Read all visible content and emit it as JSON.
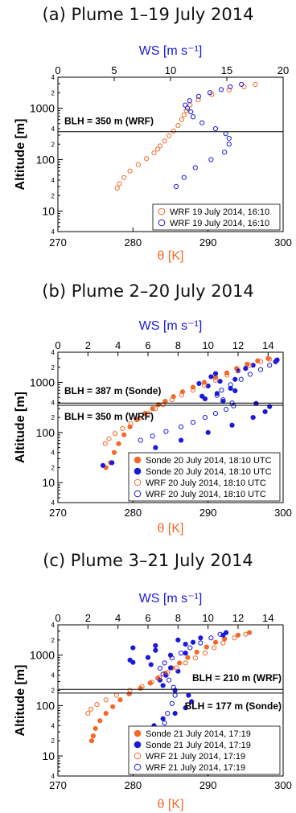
{
  "chart_data": [
    {
      "type": "scatter",
      "title": "(a) Plume 1–19 July 2014",
      "xlabel_bottom": "θ [K]",
      "xlabel_top": "WS [m s⁻¹]",
      "ylabel": "Altitude [m]",
      "x_bottom_lim": [
        270,
        300
      ],
      "x_bottom_ticks": [
        "270",
        "280",
        "290",
        "300"
      ],
      "x_top_lim": [
        0,
        20
      ],
      "x_top_ticks": [
        "0",
        "5",
        "10",
        "15",
        "20"
      ],
      "y_log_lim": [
        4,
        4000
      ],
      "y_major_ticks": [
        "10",
        "100",
        "1000"
      ],
      "y_minor_labels": [
        "4",
        "2",
        "4",
        "2",
        "4",
        "2",
        "4",
        "2"
      ],
      "blh_lines": [
        {
          "label": "BLH = 350 m (WRF)",
          "value": 350
        }
      ],
      "legend": [
        "WRF 19 July 2014, 16:10",
        "WRF 19 July 2014, 16:10"
      ],
      "series": [
        {
          "name": "WRF 19 July 2014, 16:10",
          "axis": "theta",
          "color": "#f26a2a",
          "filled": false,
          "points": [
            [
              277.9,
              28
            ],
            [
              278.2,
              34
            ],
            [
              278.8,
              45
            ],
            [
              279.6,
              60
            ],
            [
              280.7,
              80
            ],
            [
              281.8,
              105
            ],
            [
              282.8,
              135
            ],
            [
              283.3,
              160
            ],
            [
              283.6,
              185
            ],
            [
              284.2,
              230
            ],
            [
              284.8,
              290
            ],
            [
              285.4,
              360
            ],
            [
              286.0,
              460
            ],
            [
              286.5,
              600
            ],
            [
              286.8,
              740
            ],
            [
              287.1,
              900
            ],
            [
              287.6,
              1150
            ],
            [
              288.7,
              1450
            ],
            [
              290.5,
              1850
            ],
            [
              292.8,
              2250
            ],
            [
              294.8,
              2600
            ],
            [
              296.3,
              2900
            ]
          ]
        },
        {
          "name": "WRF 19 July 2014, 16:10",
          "axis": "ws",
          "color": "#1a1adf",
          "filled": false,
          "points": [
            [
              10.5,
              30
            ],
            [
              11.2,
              45
            ],
            [
              12.2,
              70
            ],
            [
              13.6,
              100
            ],
            [
              14.8,
              140
            ],
            [
              15.2,
              200
            ],
            [
              15.2,
              260
            ],
            [
              14.9,
              320
            ],
            [
              14.0,
              400
            ],
            [
              12.8,
              520
            ],
            [
              12.0,
              680
            ],
            [
              11.8,
              850
            ],
            [
              11.5,
              1000
            ],
            [
              11.3,
              1150
            ],
            [
              11.7,
              1400
            ],
            [
              12.5,
              1700
            ],
            [
              13.5,
              2000
            ],
            [
              14.5,
              2300
            ],
            [
              15.3,
              2600
            ],
            [
              16.3,
              2900
            ]
          ]
        }
      ]
    },
    {
      "type": "scatter",
      "title": "(b) Plume 2–20 July 2014",
      "xlabel_bottom": "θ [K]",
      "xlabel_top": "WS [m s⁻¹]",
      "ylabel": "Altitude [m]",
      "x_bottom_lim": [
        270,
        300
      ],
      "x_bottom_ticks": [
        "270",
        "280",
        "290",
        "300"
      ],
      "x_top_lim": [
        0,
        15
      ],
      "x_top_ticks": [
        "0",
        "2",
        "4",
        "6",
        "8",
        "10",
        "12",
        "14"
      ],
      "y_log_lim": [
        4,
        4000
      ],
      "y_major_ticks": [
        "10",
        "100",
        "1000"
      ],
      "y_minor_labels": [
        "4",
        "2",
        "4",
        "2",
        "4",
        "2",
        "4",
        "2"
      ],
      "blh_lines": [
        {
          "label": "BLH = 387 m (Sonde)",
          "value": 387
        },
        {
          "label": "BLH = 350 m (WRF)",
          "value": 350
        }
      ],
      "legend": [
        "Sonde 20 July 2014, 18:10 UTC",
        "Sonde 20 July 2014, 18:10 UTC",
        "WRF 20 July 2014, 18:10 UTC",
        "WRF 20 July 2014, 18:10 UTC"
      ],
      "series": [
        {
          "name": "Sonde 20 July 2014, 18:10 UTC",
          "axis": "theta",
          "color": "#f26a2a",
          "filled": true,
          "points": [
            [
              276.4,
              20
            ],
            [
              277.0,
              25
            ],
            [
              277.5,
              40
            ],
            [
              278.1,
              60
            ],
            [
              278.8,
              90
            ],
            [
              279.6,
              130
            ],
            [
              280.5,
              180
            ],
            [
              281.6,
              240
            ],
            [
              282.6,
              300
            ],
            [
              283.4,
              360
            ],
            [
              284.3,
              420
            ],
            [
              285.4,
              520
            ],
            [
              286.6,
              650
            ],
            [
              288.0,
              800
            ],
            [
              289.5,
              1000
            ],
            [
              291.0,
              1250
            ],
            [
              292.5,
              1550
            ],
            [
              293.8,
              1900
            ],
            [
              295.2,
              2300
            ],
            [
              296.6,
              2700
            ],
            [
              298.0,
              3000
            ]
          ]
        },
        {
          "name": "Sonde 20 July 2014, 18:10 UTC",
          "axis": "ws",
          "color": "#1a1adf",
          "filled": true,
          "points": [
            [
              3.0,
              22
            ],
            [
              3.6,
              25
            ],
            [
              5.0,
              35
            ],
            [
              6.5,
              50
            ],
            [
              8.2,
              70
            ],
            [
              10.0,
              100
            ],
            [
              11.6,
              140
            ],
            [
              13.0,
              200
            ],
            [
              13.8,
              260
            ],
            [
              14.1,
              330
            ],
            [
              13.2,
              380
            ],
            [
              11.0,
              420
            ],
            [
              9.8,
              470
            ],
            [
              9.6,
              530
            ],
            [
              10.6,
              600
            ],
            [
              11.8,
              680
            ],
            [
              11.5,
              760
            ],
            [
              10.0,
              850
            ],
            [
              9.4,
              950
            ],
            [
              10.8,
              1050
            ],
            [
              11.8,
              1150
            ],
            [
              10.2,
              1300
            ],
            [
              10.5,
              1500
            ],
            [
              12.0,
              1700
            ],
            [
              12.5,
              1900
            ],
            [
              13.0,
              2200
            ],
            [
              14.5,
              2600
            ],
            [
              14.6,
              2800
            ]
          ]
        },
        {
          "name": "WRF 20 July 2014, 18:10 UTC",
          "axis": "theta",
          "color": "#f26a2a",
          "filled": false,
          "points": [
            [
              276.3,
              60
            ],
            [
              276.8,
              75
            ],
            [
              277.6,
              95
            ],
            [
              278.6,
              120
            ],
            [
              279.7,
              150
            ],
            [
              280.8,
              190
            ],
            [
              282.0,
              240
            ],
            [
              283.0,
              300
            ],
            [
              284.0,
              360
            ],
            [
              285.2,
              450
            ],
            [
              286.5,
              560
            ],
            [
              288.0,
              700
            ],
            [
              289.5,
              880
            ],
            [
              291.0,
              1100
            ],
            [
              292.5,
              1400
            ],
            [
              294.0,
              1750
            ],
            [
              295.5,
              2200
            ],
            [
              297.0,
              2600
            ],
            [
              298.2,
              2900
            ]
          ]
        },
        {
          "name": "WRF 20 July 2014, 18:10 UTC",
          "axis": "ws",
          "color": "#1a1adf",
          "filled": false,
          "points": [
            [
              5.5,
              70
            ],
            [
              6.3,
              85
            ],
            [
              7.2,
              105
            ],
            [
              8.2,
              130
            ],
            [
              9.0,
              160
            ],
            [
              9.8,
              200
            ],
            [
              10.5,
              240
            ],
            [
              11.2,
              290
            ],
            [
              11.7,
              340
            ],
            [
              11.6,
              390
            ],
            [
              11.0,
              450
            ],
            [
              10.6,
              550
            ],
            [
              10.9,
              700
            ],
            [
              11.5,
              900
            ],
            [
              12.2,
              1150
            ],
            [
              12.8,
              1450
            ],
            [
              13.5,
              1800
            ],
            [
              14.1,
              2200
            ],
            [
              14.5,
              2600
            ]
          ]
        }
      ]
    },
    {
      "type": "scatter",
      "title": "(c) Plume 3–21 July 2014",
      "xlabel_bottom": "θ [K]",
      "xlabel_top": "WS [m s⁻¹]",
      "ylabel": "Altitude [m]",
      "x_bottom_lim": [
        270,
        300
      ],
      "x_bottom_ticks": [
        "270",
        "280",
        "290",
        "300"
      ],
      "x_top_lim": [
        0,
        15
      ],
      "x_top_ticks": [
        "0",
        "2",
        "4",
        "6",
        "8",
        "10",
        "12",
        "14"
      ],
      "y_log_lim": [
        4,
        4000
      ],
      "y_major_ticks": [
        "10",
        "100",
        "1000"
      ],
      "y_minor_labels": [
        "4",
        "2",
        "4",
        "2",
        "4",
        "2",
        "4",
        "2"
      ],
      "blh_lines": [
        {
          "label": "BLH = 210 m (WRF)",
          "value": 210
        },
        {
          "label": "BLH = 177 m (Sonde)",
          "value": 177
        }
      ],
      "legend": [
        "Sonde 21 July 2014, 17:19",
        "Sonde 21 July 2014, 17:19",
        "WRF 21 July 2014, 17:19",
        "WRF 21 July 2014, 17:19"
      ],
      "series": [
        {
          "name": "Sonde 21 July 2014, 17:19",
          "axis": "theta",
          "color": "#f26a2a",
          "filled": true,
          "points": [
            [
              274.5,
              20
            ],
            [
              274.7,
              25
            ],
            [
              275.0,
              35
            ],
            [
              275.6,
              50
            ],
            [
              276.4,
              70
            ],
            [
              277.3,
              95
            ],
            [
              278.3,
              130
            ],
            [
              279.5,
              170
            ],
            [
              281.0,
              220
            ],
            [
              282.3,
              280
            ],
            [
              283.3,
              350
            ],
            [
              284.3,
              440
            ],
            [
              285.2,
              560
            ],
            [
              286.2,
              700
            ],
            [
              287.3,
              900
            ],
            [
              288.5,
              1150
            ],
            [
              289.8,
              1450
            ],
            [
              291.0,
              1800
            ],
            [
              292.2,
              2100
            ],
            [
              294.0,
              2500
            ],
            [
              295.5,
              2800
            ]
          ]
        },
        {
          "name": "Sonde 21 July 2014, 17:19",
          "axis": "ws",
          "color": "#1a1adf",
          "filled": true,
          "points": [
            [
              6.0,
              30
            ],
            [
              6.4,
              40
            ],
            [
              7.0,
              55
            ],
            [
              7.8,
              70
            ],
            [
              8.5,
              90
            ],
            [
              8.9,
              120
            ],
            [
              8.7,
              160
            ],
            [
              7.8,
              200
            ],
            [
              7.0,
              250
            ],
            [
              6.8,
              320
            ],
            [
              7.2,
              400
            ],
            [
              8.0,
              480
            ],
            [
              7.5,
              560
            ],
            [
              6.2,
              650
            ],
            [
              5.0,
              720
            ],
            [
              4.8,
              800
            ],
            [
              6.0,
              900
            ],
            [
              7.5,
              1000
            ],
            [
              8.5,
              1100
            ],
            [
              6.5,
              1250
            ],
            [
              5.0,
              1400
            ],
            [
              6.5,
              1550
            ],
            [
              8.5,
              1650
            ],
            [
              9.0,
              1800
            ],
            [
              8.0,
              2000
            ],
            [
              9.5,
              2200
            ],
            [
              11.0,
              2500
            ],
            [
              11.2,
              2800
            ]
          ]
        },
        {
          "name": "WRF 21 July 2014, 17:19",
          "axis": "theta",
          "color": "#f26a2a",
          "filled": false,
          "points": [
            [
              274.0,
              70
            ],
            [
              274.4,
              85
            ],
            [
              275.2,
              105
            ],
            [
              276.4,
              130
            ],
            [
              277.8,
              160
            ],
            [
              279.6,
              200
            ],
            [
              281.2,
              240
            ],
            [
              282.5,
              290
            ],
            [
              283.5,
              360
            ],
            [
              284.6,
              450
            ],
            [
              285.8,
              560
            ],
            [
              287.0,
              700
            ],
            [
              288.3,
              880
            ],
            [
              289.6,
              1100
            ],
            [
              290.8,
              1400
            ],
            [
              292.0,
              1750
            ],
            [
              293.5,
              2200
            ],
            [
              295.0,
              2600
            ]
          ]
        },
        {
          "name": "WRF 21 July 2014, 17:19",
          "axis": "ws",
          "color": "#1a1adf",
          "filled": false,
          "points": [
            [
              7.0,
              30
            ],
            [
              7.1,
              45
            ],
            [
              7.3,
              70
            ],
            [
              7.6,
              110
            ],
            [
              7.8,
              160
            ],
            [
              7.7,
              230
            ],
            [
              7.4,
              320
            ],
            [
              7.0,
              420
            ],
            [
              6.8,
              550
            ],
            [
              7.1,
              700
            ],
            [
              7.6,
              880
            ],
            [
              8.2,
              1100
            ],
            [
              8.8,
              1400
            ],
            [
              9.5,
              1750
            ],
            [
              10.2,
              2200
            ],
            [
              10.8,
              2600
            ]
          ]
        }
      ]
    }
  ]
}
